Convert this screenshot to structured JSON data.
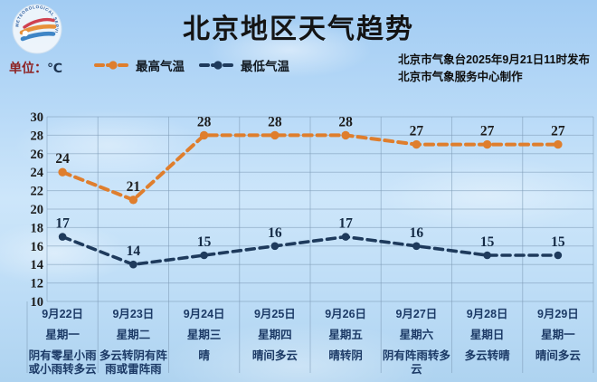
{
  "header": {
    "title": "北京地区天气趋势",
    "logo_ring_text": "METEOROLOGICAL SERVICE"
  },
  "info": {
    "unit_label": "单位：",
    "unit_value": "℃",
    "issued_line1": "北京市气象台2025年9月21日11时发布",
    "issued_line2": "北京市气象服务中心制作"
  },
  "legend": {
    "items": [
      {
        "label": "最高气温",
        "color": "#df7e2d"
      },
      {
        "label": "最低气温",
        "color": "#1e3a5c"
      }
    ]
  },
  "chart_data": {
    "type": "line",
    "title": "北京地区天气趋势",
    "unit": "℃",
    "categories": [
      "9月22日",
      "9月23日",
      "9月24日",
      "9月25日",
      "9月26日",
      "9月27日",
      "9月28日",
      "9月29日"
    ],
    "weekdays": [
      "星期一",
      "星期二",
      "星期三",
      "星期四",
      "星期五",
      "星期六",
      "星期日",
      "星期一"
    ],
    "weather": [
      "阴有零星小雨或小雨转多云",
      "多云转阴有阵雨或雷阵雨",
      "晴",
      "晴间多云",
      "晴转阴",
      "阴有阵雨转多云",
      "多云转晴",
      "晴间多云"
    ],
    "series": [
      {
        "name": "最高气温",
        "color": "#df7e2d",
        "label_color": "#1c1c1c",
        "values": [
          24,
          21,
          28,
          28,
          28,
          27,
          27,
          27
        ]
      },
      {
        "name": "最低气温",
        "color": "#1e3a5c",
        "label_color": "#142a45",
        "values": [
          17,
          14,
          15,
          16,
          17,
          16,
          15,
          15
        ]
      }
    ],
    "ylim": [
      10,
      30
    ],
    "yticks": [
      10,
      12,
      14,
      16,
      18,
      20,
      22,
      24,
      26,
      28,
      30
    ],
    "grid": true,
    "legend_position": "top-left",
    "colors": {
      "grid": "rgba(125,155,182,0.55)",
      "y_tick": "#1b1b1b",
      "x_label": "#1c3a66"
    }
  }
}
